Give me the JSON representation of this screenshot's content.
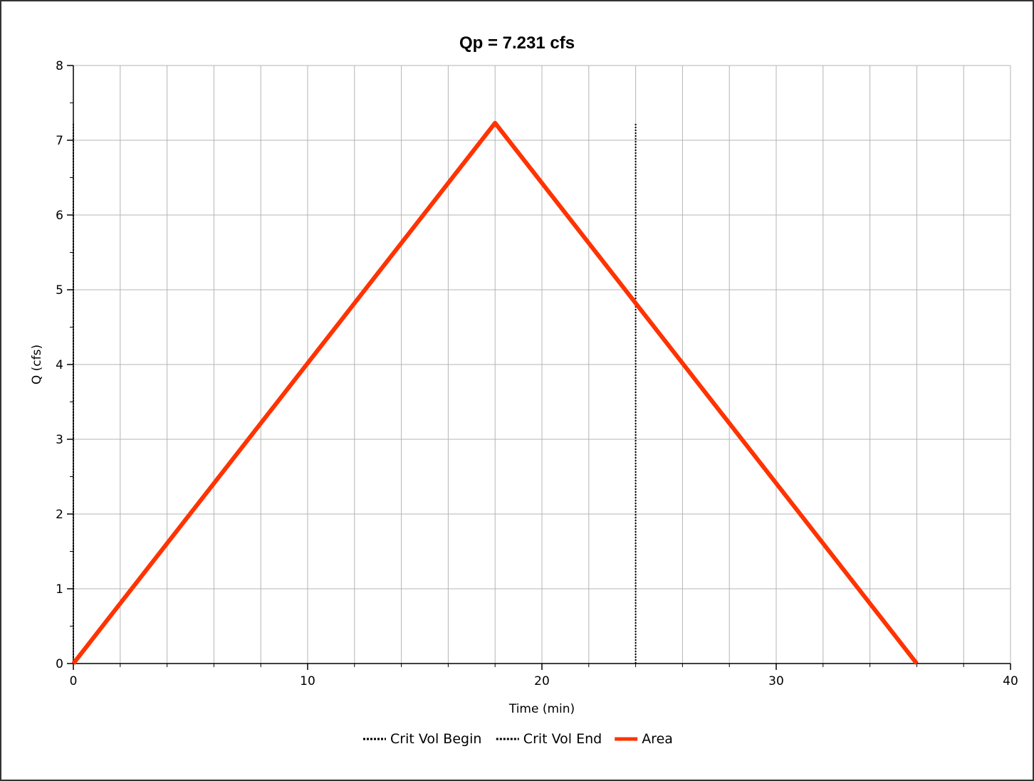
{
  "chart_data": {
    "type": "line",
    "title": "Qp = 7.231 cfs",
    "xlabel": "Time (min)",
    "ylabel": "Q (cfs)",
    "xlim": [
      0,
      40
    ],
    "ylim": [
      0,
      8
    ],
    "x_ticks": [
      0,
      10,
      20,
      30,
      40
    ],
    "y_ticks": [
      0,
      1,
      2,
      3,
      4,
      5,
      6,
      7,
      8
    ],
    "x_tick_labels": [
      "0",
      "10",
      "20",
      "30",
      "40"
    ],
    "y_tick_labels": [
      "0",
      "1",
      "2",
      "3",
      "4",
      "5",
      "6",
      "7",
      "8"
    ],
    "x_grid_step": 2,
    "y_grid_step": 1,
    "grid": true,
    "legend_position": "bottom-center",
    "series": [
      {
        "name": "Crit Vol Begin",
        "style": "dotted",
        "color": "#000000",
        "x": [
          0,
          0
        ],
        "y": [
          0,
          7.231
        ]
      },
      {
        "name": "Crit Vol End",
        "style": "dotted",
        "color": "#000000",
        "x": [
          24,
          24
        ],
        "y": [
          0,
          7.231
        ]
      },
      {
        "name": "Area",
        "style": "solid",
        "color": "#ff3300",
        "x": [
          0,
          18,
          36
        ],
        "y": [
          0,
          7.231,
          0
        ]
      }
    ]
  }
}
